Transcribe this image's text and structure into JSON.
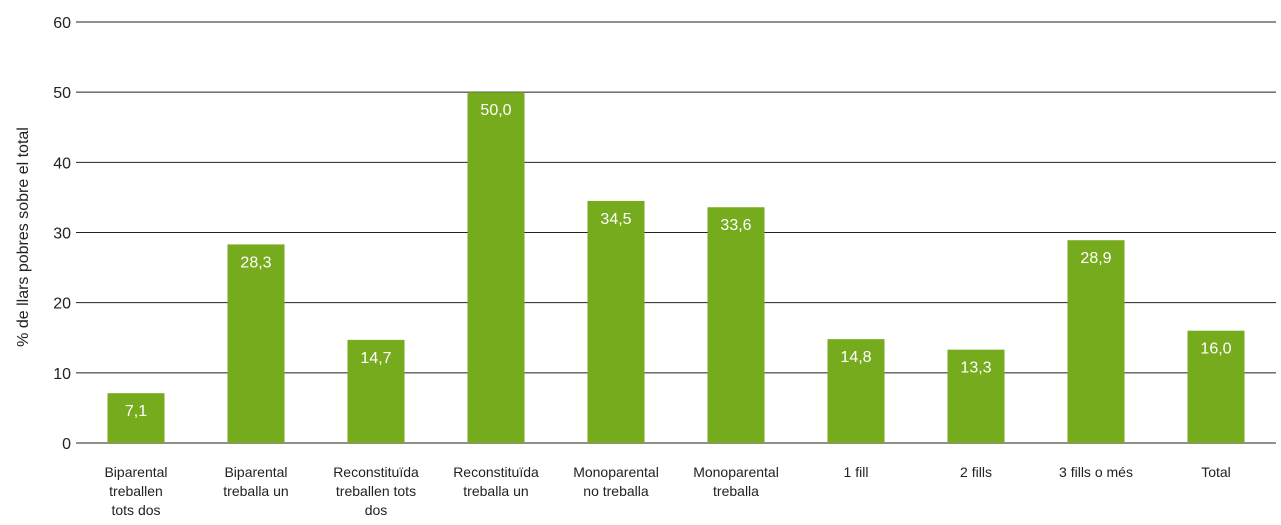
{
  "chart_data": {
    "type": "bar",
    "ylabel": "% de llars pobres sobre el total",
    "xlabel": "",
    "ylim": [
      0,
      60
    ],
    "yticks": [
      0,
      10,
      20,
      30,
      40,
      50,
      60
    ],
    "grid": true,
    "bar_color": "#76ab1e",
    "categories": [
      [
        "Biparental",
        "treballen",
        "tots dos"
      ],
      [
        "Biparental",
        "treballa un"
      ],
      [
        "Reconstituïda",
        "treballen tots",
        "dos"
      ],
      [
        "Reconstituïda",
        "treballa un"
      ],
      [
        "Monoparental",
        "no treballa"
      ],
      [
        "Monoparental",
        "treballa"
      ],
      [
        "1 fill"
      ],
      [
        "2 fills"
      ],
      [
        "3 fills o més"
      ],
      [
        "Total"
      ]
    ],
    "values": [
      7.1,
      28.3,
      14.7,
      50.0,
      34.5,
      33.6,
      14.8,
      13.3,
      28.9,
      16.0
    ],
    "value_labels": [
      "7,1",
      "28,3",
      "14,7",
      "50,0",
      "34,5",
      "33,6",
      "14,8",
      "13,3",
      "28,9",
      "16,0"
    ]
  }
}
